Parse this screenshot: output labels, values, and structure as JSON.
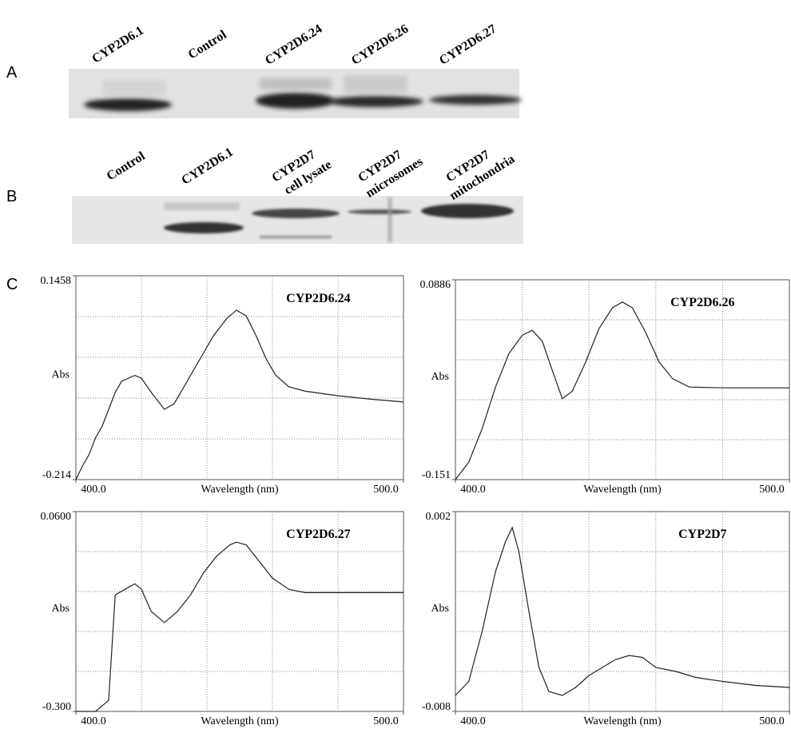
{
  "panels": {
    "a": {
      "label": "A",
      "lanes": [
        [
          "CYP2D6.1"
        ],
        [
          "Control"
        ],
        [
          "CYP2D6.24"
        ],
        [
          "CYP2D6.26"
        ],
        [
          "CYP2D6.27"
        ]
      ]
    },
    "b": {
      "label": "B",
      "lanes": [
        [
          "Control"
        ],
        [
          "CYP2D6.1"
        ],
        [
          "CYP2D7",
          "cell lysate"
        ],
        [
          "CYP2D7",
          "microsomes"
        ],
        [
          "CYP2D7",
          "mitochondria"
        ]
      ]
    },
    "c": {
      "label": "C"
    }
  },
  "chart_data": [
    {
      "type": "line",
      "title": "CYP2D6.24",
      "x_label": "Wavelength (nm)",
      "y_label": "Abs",
      "grid": true,
      "color": "#222",
      "xlim": [
        400,
        500
      ],
      "xticks": [
        {
          "value": 400,
          "label": "400.0"
        },
        {
          "value": 500,
          "label": "500.0"
        }
      ],
      "ylim": [
        -0.214,
        0.1458
      ],
      "yticks": [
        -0.214,
        0.1458
      ],
      "x": [
        400,
        402,
        404,
        406,
        408,
        410,
        412,
        414,
        418,
        420,
        423,
        427,
        430,
        434,
        438,
        442,
        446,
        449,
        452,
        455,
        458,
        461,
        465,
        470,
        480,
        490,
        500
      ],
      "values": [
        -0.214,
        -0.19,
        -0.17,
        -0.14,
        -0.12,
        -0.09,
        -0.06,
        -0.04,
        -0.03,
        -0.035,
        -0.06,
        -0.09,
        -0.08,
        -0.04,
        0.0,
        0.04,
        0.07,
        0.085,
        0.075,
        0.04,
        0.0,
        -0.03,
        -0.05,
        -0.058,
        -0.066,
        -0.072,
        -0.077
      ]
    },
    {
      "type": "line",
      "title": "CYP2D6.26",
      "x_label": "Wavelength (nm)",
      "y_label": "Abs",
      "grid": true,
      "color": "#222",
      "xlim": [
        400,
        500
      ],
      "xticks": [
        {
          "value": 400,
          "label": "400.0"
        },
        {
          "value": 500,
          "label": "500.0"
        }
      ],
      "ylim": [
        -0.151,
        0.0886
      ],
      "yticks": [
        -0.151,
        0.0886
      ],
      "x": [
        400,
        404,
        408,
        412,
        416,
        420,
        423,
        426,
        429,
        432,
        435,
        439,
        443,
        447,
        450,
        453,
        457,
        461,
        465,
        470,
        480,
        500
      ],
      "values": [
        -0.151,
        -0.13,
        -0.09,
        -0.04,
        0.0,
        0.022,
        0.028,
        0.015,
        -0.02,
        -0.054,
        -0.045,
        -0.01,
        0.03,
        0.055,
        0.062,
        0.055,
        0.025,
        -0.01,
        -0.03,
        -0.04,
        -0.041,
        -0.041
      ]
    },
    {
      "type": "line",
      "title": "CYP2D6.27",
      "x_label": "Wavelength (nm)",
      "y_label": "Abs",
      "grid": true,
      "color": "#222",
      "xlim": [
        400,
        500
      ],
      "xticks": [
        {
          "value": 400,
          "label": "400.0"
        },
        {
          "value": 500,
          "label": "500.0"
        }
      ],
      "ylim": [
        -0.3,
        0.06
      ],
      "yticks": [
        {
          "value": -0.3,
          "label": "-0.300"
        },
        {
          "value": 0.06,
          "label": "0.0600"
        }
      ],
      "x": [
        400,
        406,
        410,
        412,
        415,
        418,
        420,
        423,
        427,
        431,
        435,
        439,
        443,
        447,
        449,
        452,
        456,
        460,
        465,
        470,
        500
      ],
      "values": [
        -0.3,
        -0.3,
        -0.28,
        -0.09,
        -0.08,
        -0.07,
        -0.08,
        -0.12,
        -0.14,
        -0.12,
        -0.09,
        -0.05,
        -0.02,
        0.0,
        0.005,
        0.0,
        -0.03,
        -0.06,
        -0.08,
        -0.086,
        -0.086
      ]
    },
    {
      "type": "line",
      "title": "CYP2D7",
      "x_label": "Wavelength (nm)",
      "y_label": "Abs",
      "grid": true,
      "color": "#222",
      "xlim": [
        400,
        500
      ],
      "xticks": [
        {
          "value": 400,
          "label": "400.0"
        },
        {
          "value": 500,
          "label": "500.0"
        }
      ],
      "ylim": [
        -0.008,
        0.002
      ],
      "yticks": [
        -0.008,
        0.002
      ],
      "x": [
        400,
        404,
        408,
        412,
        415,
        417,
        419,
        422,
        425,
        428,
        432,
        436,
        440,
        444,
        448,
        452,
        456,
        460,
        466,
        472,
        480,
        490,
        500
      ],
      "values": [
        -0.0072,
        -0.0065,
        -0.004,
        -0.001,
        0.0005,
        0.0012,
        0.0,
        -0.003,
        -0.0058,
        -0.007,
        -0.0072,
        -0.0068,
        -0.0062,
        -0.0058,
        -0.0054,
        -0.0052,
        -0.0053,
        -0.0058,
        -0.006,
        -0.0063,
        -0.0065,
        -0.0067,
        -0.0068
      ]
    }
  ]
}
